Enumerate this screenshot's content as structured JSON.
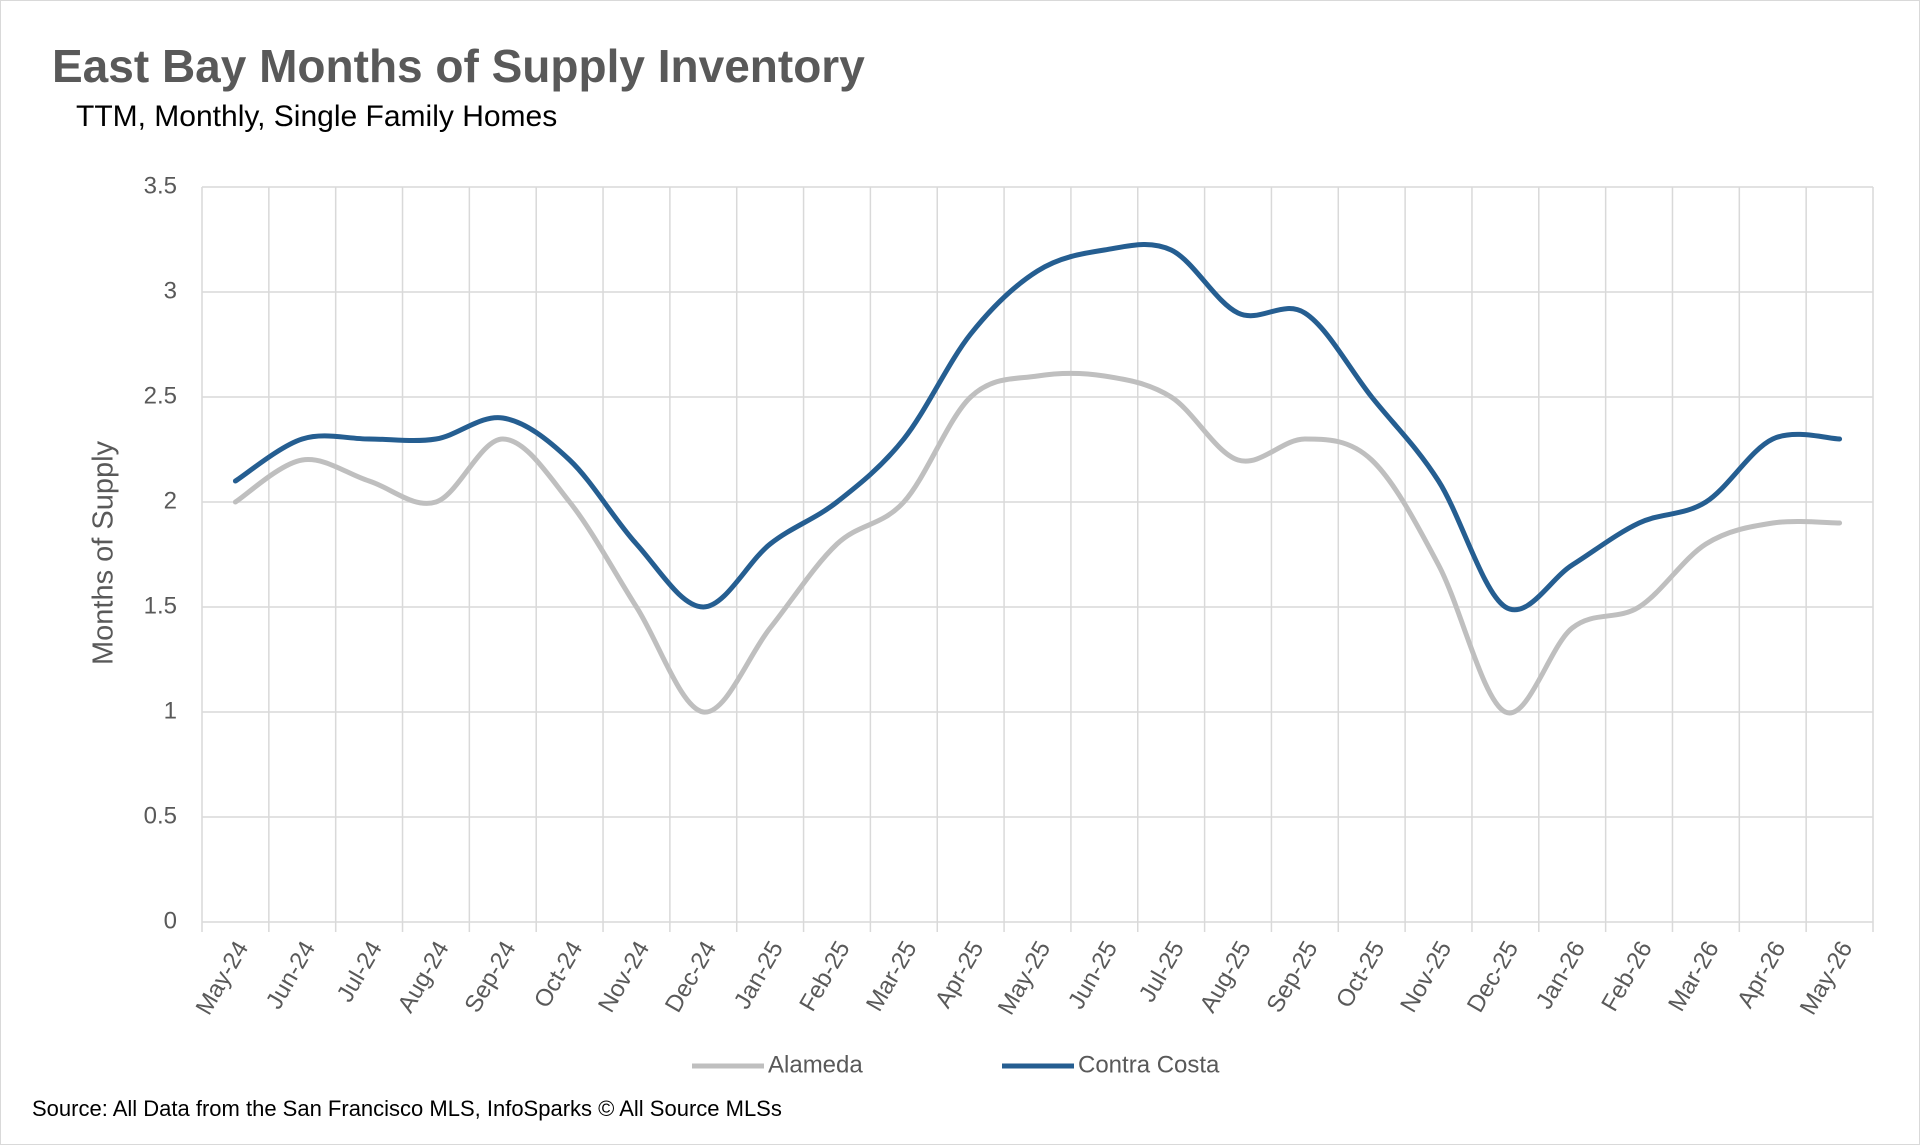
{
  "chart_data": {
    "type": "line",
    "title": "East Bay Months of Supply Inventory",
    "subtitle": "TTM, Monthly, Single Family Homes",
    "y_label": "Months of Supply",
    "source": "Source: All Data from the San Francisco MLS, InfoSparks © All Source MLSs",
    "categories": [
      "May-24",
      "Jun-24",
      "Jul-24",
      "Aug-24",
      "Sep-24",
      "Oct-24",
      "Nov-24",
      "Dec-24",
      "Jan-25",
      "Feb-25",
      "Mar-25",
      "Apr-25",
      "May-25",
      "Jun-25",
      "Jul-25",
      "Aug-25",
      "Sep-25",
      "Oct-25",
      "Nov-25",
      "Dec-25",
      "Jan-26",
      "Feb-26",
      "Mar-26",
      "Apr-26",
      "May-26"
    ],
    "series": [
      {
        "name": "Alameda",
        "color": "#bfbfbf",
        "values": [
          2.0,
          2.2,
          2.1,
          2.0,
          2.3,
          2.0,
          1.5,
          1.0,
          1.4,
          1.8,
          2.0,
          2.5,
          2.6,
          2.6,
          2.5,
          2.2,
          2.3,
          2.2,
          1.7,
          1.0,
          1.4,
          1.5,
          1.8,
          1.9,
          1.9
        ]
      },
      {
        "name": "Contra Costa",
        "color": "#255e91",
        "values": [
          2.1,
          2.3,
          2.3,
          2.3,
          2.4,
          2.2,
          1.8,
          1.5,
          1.8,
          2.0,
          2.3,
          2.8,
          3.1,
          3.2,
          3.2,
          2.9,
          2.9,
          2.5,
          2.1,
          1.5,
          1.7,
          1.9,
          2.0,
          2.3,
          2.3
        ]
      }
    ],
    "ylim": [
      0,
      3.5
    ],
    "yticks": [
      0,
      0.5,
      1,
      1.5,
      2,
      2.5,
      3,
      3.5
    ],
    "grid": true,
    "smooth": true,
    "legend": "bottom"
  }
}
